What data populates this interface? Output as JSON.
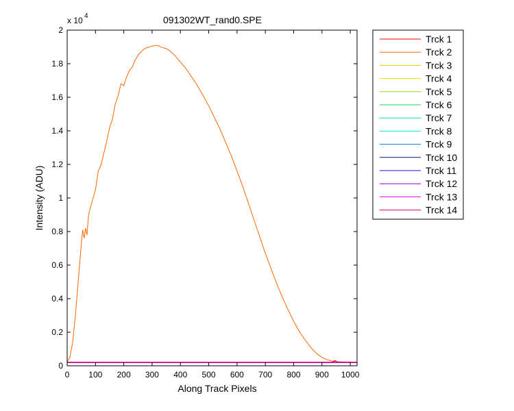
{
  "chart_data": {
    "type": "line",
    "title": "091302WT_rand0.SPE",
    "xlabel": "Along Track Pixels",
    "ylabel": "Intensity (ADU)",
    "y_multiplier_base": "x 10",
    "y_multiplier_exp": "4",
    "xlim": [
      0,
      1024
    ],
    "ylim": [
      0,
      20000
    ],
    "xticks": [
      0,
      100,
      200,
      300,
      400,
      500,
      600,
      700,
      800,
      900,
      1000
    ],
    "xtick_labels": [
      "0",
      "100",
      "200",
      "300",
      "400",
      "500",
      "600",
      "700",
      "800",
      "900",
      "1000"
    ],
    "yticks": [
      0,
      2000,
      4000,
      6000,
      8000,
      10000,
      12000,
      14000,
      16000,
      18000,
      20000
    ],
    "ytick_labels": [
      "0",
      "0.2",
      "0.4",
      "0.6",
      "0.8",
      "1",
      "1.2",
      "1.4",
      "1.6",
      "1.8",
      "2"
    ],
    "grid": false,
    "legend_position": "outside-right",
    "series": [
      {
        "name": "Trck 1",
        "color": "#ff0000",
        "x": [
          0,
          1024
        ],
        "y": [
          200,
          200
        ]
      },
      {
        "name": "Trck 2",
        "color": "#ff6600",
        "x": [
          0,
          10,
          20,
          30,
          40,
          50,
          55,
          60,
          65,
          70,
          75,
          80,
          90,
          100,
          110,
          120,
          130,
          140,
          150,
          160,
          170,
          180,
          190,
          200,
          210,
          220,
          230,
          240,
          250,
          260,
          270,
          280,
          290,
          300,
          310,
          320,
          330,
          340,
          350,
          360,
          380,
          400,
          420,
          440,
          460,
          480,
          500,
          520,
          540,
          560,
          580,
          600,
          620,
          640,
          660,
          680,
          700,
          720,
          740,
          760,
          780,
          800,
          820,
          840,
          860,
          880,
          900,
          920,
          940,
          960,
          980,
          1000,
          1010,
          1024
        ],
        "y": [
          250,
          500,
          1500,
          3200,
          5200,
          7300,
          8100,
          7600,
          8200,
          7800,
          8900,
          9300,
          9900,
          10500,
          11600,
          12000,
          12700,
          13400,
          14200,
          14700,
          15600,
          16100,
          16800,
          16700,
          17200,
          17600,
          17800,
          18200,
          18500,
          18700,
          18850,
          18950,
          19000,
          19050,
          19080,
          19100,
          19000,
          18950,
          18900,
          18800,
          18500,
          18100,
          17700,
          17200,
          16700,
          16100,
          15500,
          14800,
          14100,
          13300,
          12500,
          11600,
          10700,
          9700,
          8700,
          7700,
          6700,
          5800,
          4900,
          4100,
          3350,
          2650,
          2050,
          1550,
          1100,
          750,
          500,
          350,
          270,
          240,
          230,
          230,
          225,
          220
        ]
      },
      {
        "name": "Trck 3",
        "color": "#e6c800",
        "x": [
          0,
          1024
        ],
        "y": [
          200,
          200
        ]
      },
      {
        "name": "Trck 4",
        "color": "#d4e600",
        "x": [
          0,
          1024
        ],
        "y": [
          200,
          200
        ]
      },
      {
        "name": "Trck 5",
        "color": "#80e600",
        "x": [
          0,
          1024
        ],
        "y": [
          200,
          200
        ]
      },
      {
        "name": "Trck 6",
        "color": "#00e64d",
        "x": [
          0,
          1024
        ],
        "y": [
          200,
          200
        ]
      },
      {
        "name": "Trck 7",
        "color": "#00d9a6",
        "x": [
          0,
          1024
        ],
        "y": [
          200,
          200
        ]
      },
      {
        "name": "Trck 8",
        "color": "#00e6e6",
        "x": [
          0,
          1024
        ],
        "y": [
          200,
          200
        ]
      },
      {
        "name": "Trck 9",
        "color": "#0080c8",
        "x": [
          0,
          1024
        ],
        "y": [
          200,
          200
        ]
      },
      {
        "name": "Trck 10",
        "color": "#001a80",
        "x": [
          0,
          1024
        ],
        "y": [
          200,
          200
        ]
      },
      {
        "name": "Trck 11",
        "color": "#3300e6",
        "x": [
          0,
          1024
        ],
        "y": [
          200,
          200
        ]
      },
      {
        "name": "Trck 12",
        "color": "#9900cc",
        "x": [
          0,
          1024
        ],
        "y": [
          200,
          200
        ]
      },
      {
        "name": "Trck 13",
        "color": "#e600d9",
        "x": [
          0,
          1024
        ],
        "y": [
          220,
          220
        ]
      },
      {
        "name": "Trck 14",
        "color": "#e60066",
        "x": [
          0,
          930,
          940,
          945,
          950,
          955,
          960,
          1024
        ],
        "y": [
          200,
          200,
          250,
          320,
          280,
          220,
          200,
          200
        ]
      }
    ]
  }
}
